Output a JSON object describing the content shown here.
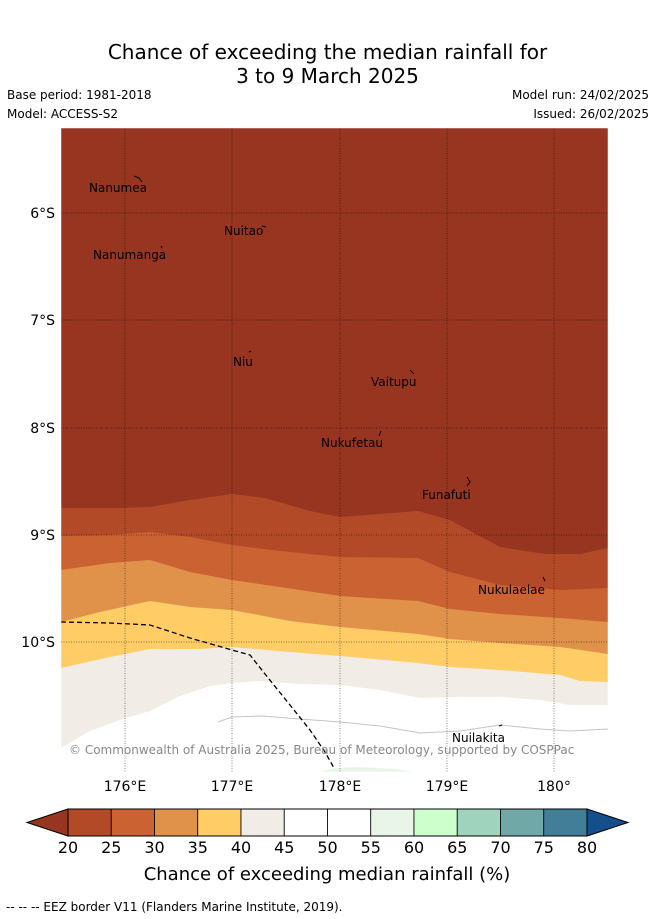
{
  "header": {
    "title_line1": "Chance of exceeding the median rainfall for",
    "title_line2": "3 to 9 March 2025",
    "base_period": "Base period: 1981-2018",
    "model": "Model: ACCESS-S2",
    "model_run": "Model run: 24/02/2025",
    "issued": "Issued: 26/02/2025"
  },
  "map": {
    "lat_labels": [
      "6°S",
      "7°S",
      "8°S",
      "9°S",
      "10°S"
    ],
    "lon_labels": [
      "176°E",
      "177°E",
      "178°E",
      "179°E",
      "180°"
    ],
    "places": [
      "Nanumea",
      "Nuitao",
      "Nanumanga",
      "Niu",
      "Vaitupu",
      "Nukufetau",
      "Funafuti",
      "Nukulaelae",
      "Nuilakita"
    ],
    "copyright": "© Commonwealth of Australia 2025, Bureau of Meteorology, supported by COSPPac"
  },
  "colorbar": {
    "ticks": [
      "20",
      "25",
      "30",
      "35",
      "40",
      "45",
      "50",
      "55",
      "60",
      "65",
      "70",
      "75",
      "80"
    ],
    "colors": [
      "#b34a27",
      "#ca6232",
      "#e0924a",
      "#ffcc66",
      "#f1ede6",
      "#ffffff",
      "#ffffff",
      "#eaf5ea",
      "#ccffcc",
      "#9fd3bd",
      "#70a8a8",
      "#427e98"
    ],
    "under_color": "#973521",
    "over_color": "#144f8c",
    "label": "Chance of exceeding median rainfall (%)"
  },
  "legend_note": "--  --  -- EEZ border V11 (Flanders Marine Institute, 2019)."
}
